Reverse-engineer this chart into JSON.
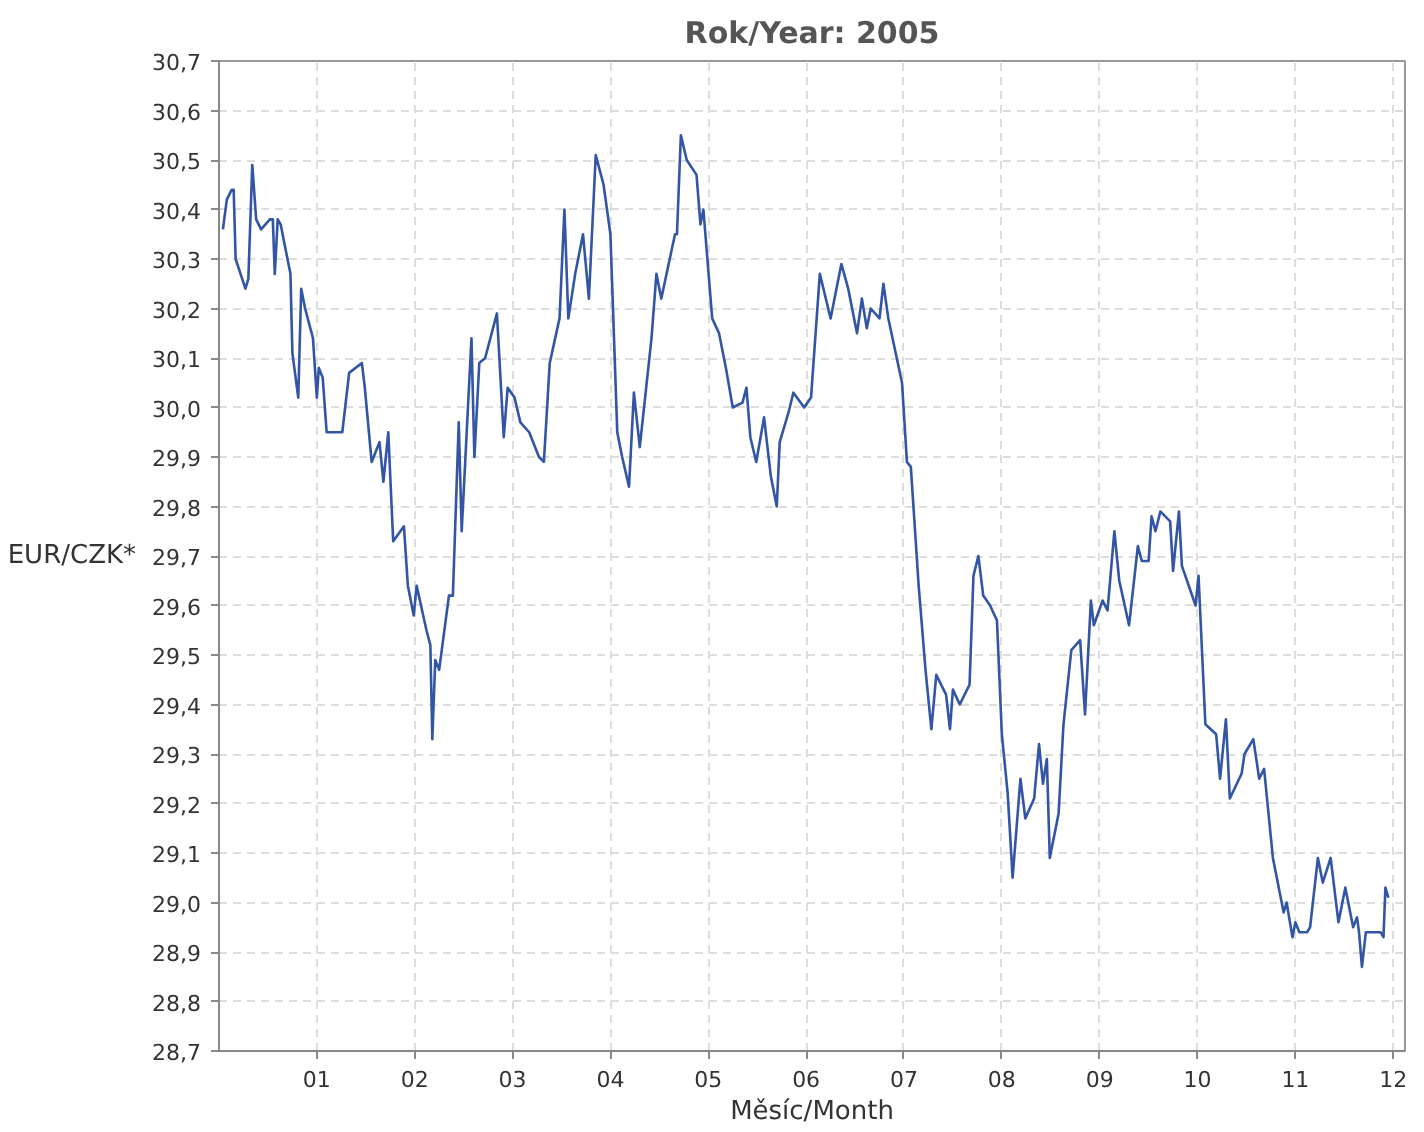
{
  "chart_data": {
    "type": "line",
    "title": "Rok/Year: 2005",
    "xlabel": "Měsíc/Month",
    "ylabel": "EUR/CZK*",
    "xlim": [
      0,
      12.12
    ],
    "ylim": [
      28.7,
      30.7
    ],
    "xticks": [
      {
        "value": 1,
        "label": "01"
      },
      {
        "value": 2,
        "label": "02"
      },
      {
        "value": 3,
        "label": "03"
      },
      {
        "value": 4,
        "label": "04"
      },
      {
        "value": 5,
        "label": "05"
      },
      {
        "value": 6,
        "label": "06"
      },
      {
        "value": 7,
        "label": "07"
      },
      {
        "value": 8,
        "label": "08"
      },
      {
        "value": 9,
        "label": "09"
      },
      {
        "value": 10,
        "label": "10"
      },
      {
        "value": 11,
        "label": "11"
      },
      {
        "value": 12,
        "label": "12"
      }
    ],
    "yticks": [
      {
        "value": 28.7,
        "label": "28,7"
      },
      {
        "value": 28.8,
        "label": "28,8"
      },
      {
        "value": 28.9,
        "label": "28,9"
      },
      {
        "value": 29.0,
        "label": "29,0"
      },
      {
        "value": 29.1,
        "label": "29,1"
      },
      {
        "value": 29.2,
        "label": "29,2"
      },
      {
        "value": 29.3,
        "label": "29,3"
      },
      {
        "value": 29.4,
        "label": "29,4"
      },
      {
        "value": 29.5,
        "label": "29,5"
      },
      {
        "value": 29.6,
        "label": "29,6"
      },
      {
        "value": 29.7,
        "label": "29,7"
      },
      {
        "value": 29.8,
        "label": "29,8"
      },
      {
        "value": 29.9,
        "label": "29,9"
      },
      {
        "value": 30.0,
        "label": "30,0"
      },
      {
        "value": 30.1,
        "label": "30,1"
      },
      {
        "value": 30.2,
        "label": "30,2"
      },
      {
        "value": 30.3,
        "label": "30,3"
      },
      {
        "value": 30.4,
        "label": "30,4"
      },
      {
        "value": 30.5,
        "label": "30,5"
      },
      {
        "value": 30.6,
        "label": "30,6"
      },
      {
        "value": 30.7,
        "label": "30,7"
      }
    ],
    "grid": true,
    "marker": "none",
    "line_style": "solid",
    "series": [
      {
        "color": "#3355a5",
        "x": [
          0.04,
          0.08,
          0.13,
          0.15,
          0.17,
          0.27,
          0.3,
          0.34,
          0.38,
          0.43,
          0.52,
          0.55,
          0.57,
          0.6,
          0.63,
          0.67,
          0.73,
          0.75,
          0.81,
          0.84,
          0.88,
          0.96,
          1.0,
          1.02,
          1.06,
          1.1,
          1.26,
          1.33,
          1.46,
          1.49,
          1.56,
          1.64,
          1.68,
          1.73,
          1.78,
          1.89,
          1.93,
          1.99,
          2.02,
          2.12,
          2.16,
          2.18,
          2.21,
          2.25,
          2.35,
          2.39,
          2.45,
          2.48,
          2.58,
          2.61,
          2.66,
          2.72,
          2.84,
          2.91,
          2.95,
          3.02,
          3.08,
          3.17,
          3.27,
          3.32,
          3.38,
          3.48,
          3.53,
          3.57,
          3.64,
          3.72,
          3.78,
          3.85,
          3.93,
          4.0,
          4.07,
          4.12,
          4.19,
          4.24,
          4.3,
          4.42,
          4.47,
          4.52,
          4.66,
          4.68,
          4.72,
          4.78,
          4.88,
          4.92,
          4.95,
          5.04,
          5.11,
          5.18,
          5.25,
          5.35,
          5.39,
          5.43,
          5.49,
          5.57,
          5.64,
          5.7,
          5.73,
          5.82,
          5.87,
          5.98,
          6.05,
          6.14,
          6.25,
          6.36,
          6.43,
          6.52,
          6.57,
          6.62,
          6.66,
          6.75,
          6.79,
          6.84,
          6.98,
          7.03,
          7.07,
          7.15,
          7.22,
          7.28,
          7.33,
          7.43,
          7.47,
          7.5,
          7.57,
          7.67,
          7.71,
          7.76,
          7.81,
          7.88,
          7.95,
          8.0,
          8.06,
          8.11,
          8.19,
          8.24,
          8.33,
          8.38,
          8.42,
          8.46,
          8.49,
          8.58,
          8.63,
          8.71,
          8.8,
          8.85,
          8.91,
          8.94,
          9.03,
          9.08,
          9.15,
          9.2,
          9.3,
          9.39,
          9.43,
          9.5,
          9.53,
          9.57,
          9.62,
          9.72,
          9.75,
          9.81,
          9.84,
          9.98,
          10.01,
          10.08,
          10.19,
          10.23,
          10.29,
          10.33,
          10.45,
          10.48,
          10.57,
          10.63,
          10.68,
          10.77,
          10.88,
          10.91,
          10.97,
          11.0,
          11.04,
          11.12,
          11.15,
          11.23,
          11.28,
          11.36,
          11.44,
          11.51,
          11.59,
          11.63,
          11.65,
          11.68,
          11.72,
          11.87,
          11.9,
          11.92,
          11.95
        ],
        "values": [
          30.36,
          30.42,
          30.44,
          30.44,
          30.3,
          30.24,
          30.26,
          30.49,
          30.38,
          30.36,
          30.38,
          30.38,
          30.27,
          30.38,
          30.37,
          30.33,
          30.27,
          30.11,
          30.02,
          30.24,
          30.2,
          30.14,
          30.02,
          30.08,
          30.06,
          29.95,
          29.95,
          30.07,
          30.09,
          30.04,
          29.89,
          29.93,
          29.85,
          29.95,
          29.73,
          29.76,
          29.64,
          29.58,
          29.64,
          29.55,
          29.52,
          29.33,
          29.49,
          29.47,
          29.62,
          29.62,
          29.97,
          29.75,
          30.14,
          29.9,
          30.09,
          30.1,
          30.19,
          29.94,
          30.04,
          30.02,
          29.97,
          29.95,
          29.9,
          29.89,
          30.09,
          30.18,
          30.4,
          30.18,
          30.27,
          30.35,
          30.22,
          30.51,
          30.45,
          30.35,
          29.95,
          29.9,
          29.84,
          30.03,
          29.92,
          30.14,
          30.27,
          30.22,
          30.35,
          30.35,
          30.55,
          30.5,
          30.47,
          30.37,
          30.4,
          30.18,
          30.15,
          30.08,
          30.0,
          30.01,
          30.04,
          29.94,
          29.89,
          29.98,
          29.86,
          29.8,
          29.93,
          29.99,
          30.03,
          30.0,
          30.02,
          30.27,
          30.18,
          30.29,
          30.24,
          30.15,
          30.22,
          30.16,
          30.2,
          30.18,
          30.25,
          30.18,
          30.05,
          29.89,
          29.88,
          29.64,
          29.47,
          29.35,
          29.46,
          29.42,
          29.35,
          29.43,
          29.4,
          29.44,
          29.66,
          29.7,
          29.62,
          29.6,
          29.57,
          29.34,
          29.22,
          29.05,
          29.25,
          29.17,
          29.21,
          29.32,
          29.24,
          29.29,
          29.09,
          29.18,
          29.36,
          29.51,
          29.53,
          29.38,
          29.61,
          29.56,
          29.61,
          29.59,
          29.75,
          29.65,
          29.56,
          29.72,
          29.69,
          29.69,
          29.78,
          29.75,
          29.79,
          29.77,
          29.67,
          29.79,
          29.68,
          29.6,
          29.66,
          29.36,
          29.34,
          29.25,
          29.37,
          29.21,
          29.26,
          29.3,
          29.33,
          29.25,
          29.27,
          29.09,
          28.98,
          29.0,
          28.93,
          28.96,
          28.94,
          28.94,
          28.95,
          29.09,
          29.04,
          29.09,
          28.96,
          29.03,
          28.95,
          28.97,
          28.94,
          28.87,
          28.94,
          28.94,
          28.93,
          29.03,
          29.01
        ]
      }
    ]
  }
}
